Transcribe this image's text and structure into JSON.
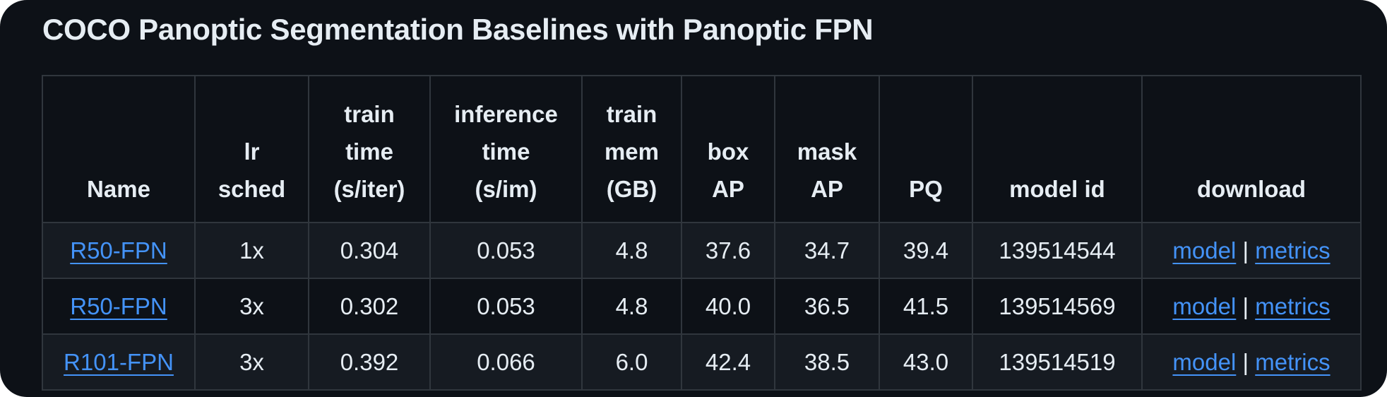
{
  "title": "COCO Panoptic Segmentation Baselines with Panoptic FPN",
  "colors": {
    "background": "#0d1117",
    "row_alt": "#161b22",
    "border": "#30363d",
    "text": "#e6edf3",
    "link": "#4493f8"
  },
  "table": {
    "headers": [
      "Name",
      "lr\nsched",
      "train\ntime\n(s/iter)",
      "inference\ntime\n(s/im)",
      "train\nmem\n(GB)",
      "box\nAP",
      "mask\nAP",
      "PQ",
      "model id",
      "download"
    ],
    "rows": [
      {
        "name": "R50-FPN",
        "lr_sched": "1x",
        "train_time": "0.304",
        "inference_time": "0.053",
        "train_mem": "4.8",
        "box_ap": "37.6",
        "mask_ap": "34.7",
        "pq": "39.4",
        "model_id": "139514544",
        "model_link": "model",
        "separator": "|",
        "metrics_link": "metrics"
      },
      {
        "name": "R50-FPN",
        "lr_sched": "3x",
        "train_time": "0.302",
        "inference_time": "0.053",
        "train_mem": "4.8",
        "box_ap": "40.0",
        "mask_ap": "36.5",
        "pq": "41.5",
        "model_id": "139514569",
        "model_link": "model",
        "separator": "|",
        "metrics_link": "metrics"
      },
      {
        "name": "R101-FPN",
        "lr_sched": "3x",
        "train_time": "0.392",
        "inference_time": "0.066",
        "train_mem": "6.0",
        "box_ap": "42.4",
        "mask_ap": "38.5",
        "pq": "43.0",
        "model_id": "139514519",
        "model_link": "model",
        "separator": "|",
        "metrics_link": "metrics"
      }
    ]
  }
}
